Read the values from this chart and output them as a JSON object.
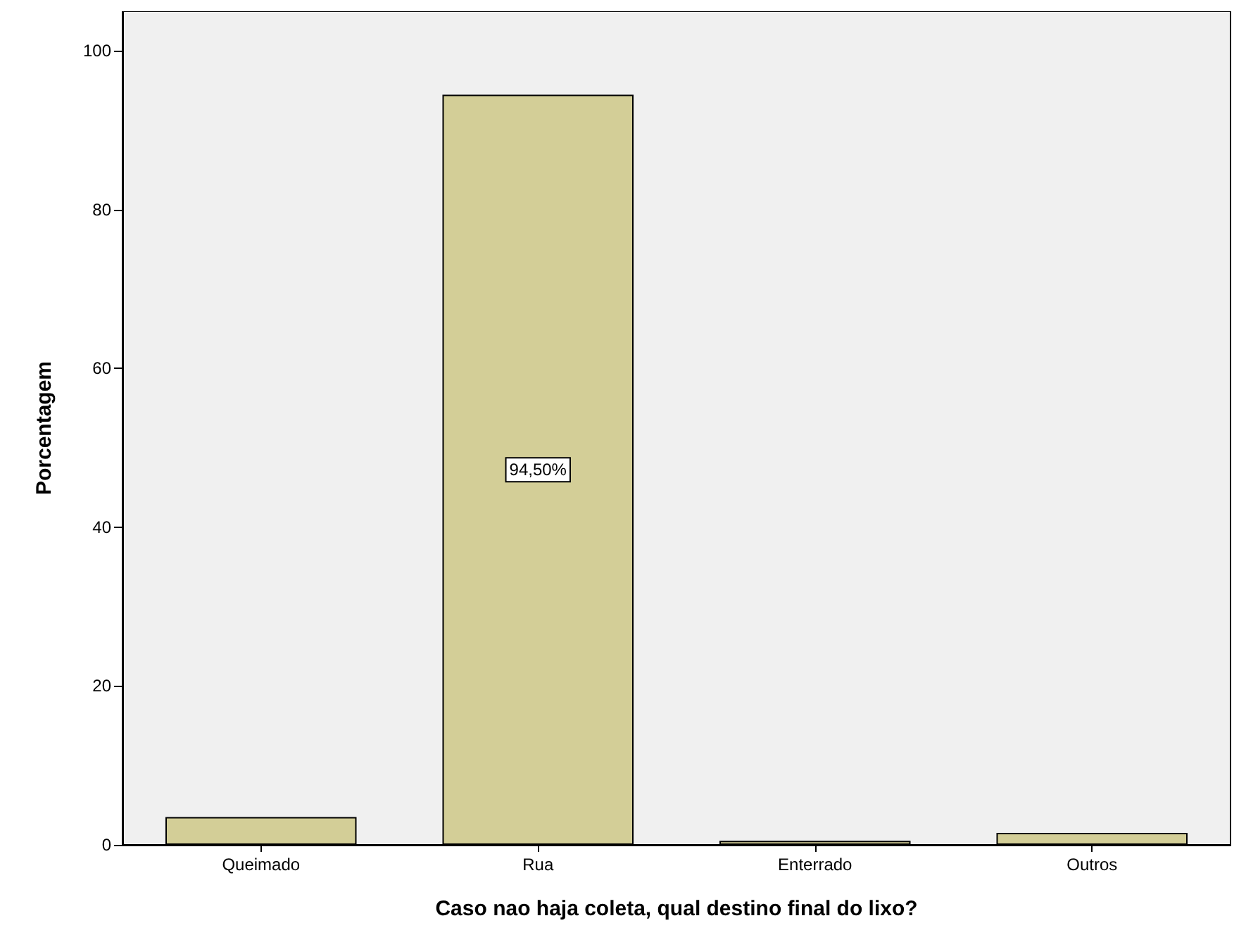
{
  "chart_data": {
    "type": "bar",
    "xlabel": "Caso nao haja coleta, qual destino final do lixo?",
    "ylabel": "Porcentagem",
    "categories": [
      "Queimado",
      "Rua",
      "Enterrado",
      "Outros"
    ],
    "values": [
      3.5,
      94.5,
      0.5,
      1.5
    ],
    "value_labels": [
      null,
      "94,50%",
      null,
      null
    ],
    "color": "#d3ce97",
    "ylim": [
      0,
      105
    ],
    "yticks": [
      0,
      20,
      40,
      60,
      80,
      100
    ],
    "grid": false
  }
}
